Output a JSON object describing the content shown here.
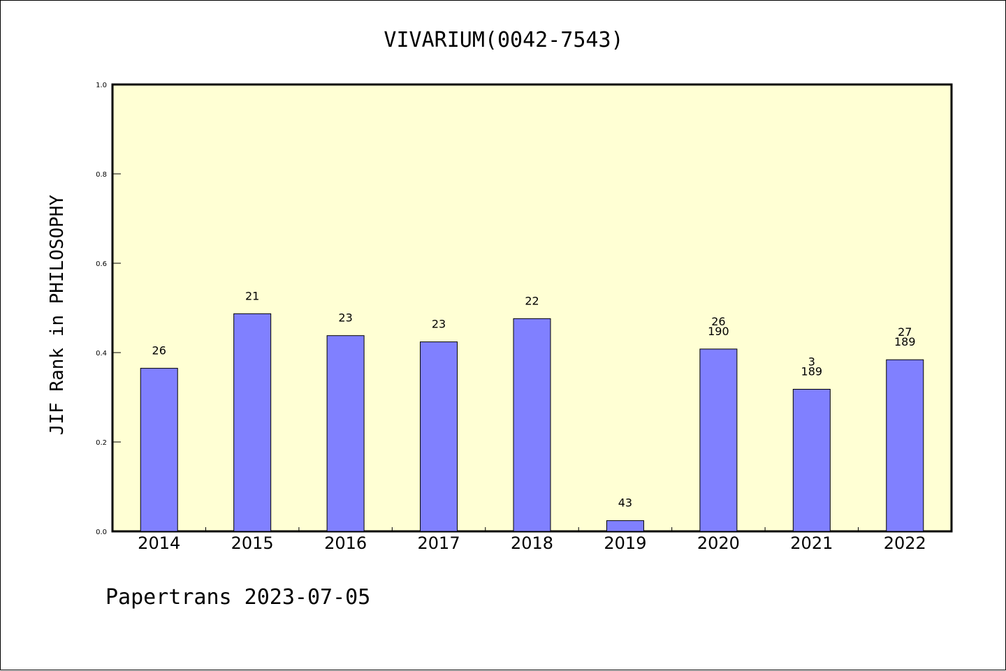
{
  "chart_data": {
    "type": "bar",
    "title": "VIVARIUM(0042-7543)",
    "ylabel": "JIF Rank in PHILOSOPHY",
    "xlabel": "",
    "ylim": [
      0,
      1.0
    ],
    "yticks": [
      "0.0",
      "0.2",
      "0.4",
      "0.6",
      "0.8",
      "1.0"
    ],
    "categories": [
      "2014",
      "2015",
      "2016",
      "2017",
      "2018",
      "2019",
      "2020",
      "2021",
      "2022"
    ],
    "values": [
      0.365,
      0.487,
      0.438,
      0.424,
      0.476,
      0.024,
      0.408,
      0.318,
      0.384
    ],
    "bar_labels": [
      [
        "26"
      ],
      [
        "21"
      ],
      [
        "23"
      ],
      [
        "23"
      ],
      [
        "22"
      ],
      [
        "43"
      ],
      [
        "26",
        "190"
      ],
      [
        "3",
        "189"
      ],
      [
        "27",
        "189"
      ]
    ],
    "grid": false,
    "colors": {
      "plot_background": "#ffffd4",
      "bar_fill": "#8080ff",
      "bar_stroke": "#000000"
    }
  },
  "footer": {
    "text": "Papertrans 2023-07-05"
  }
}
